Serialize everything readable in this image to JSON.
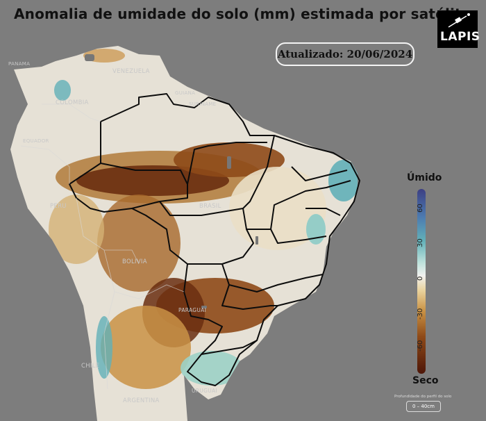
{
  "title": "Anomalia de umidade do solo (mm) estimada por satélite",
  "updated": "Atualizado: 20/06/2024",
  "logo": {
    "text": "LAPIS",
    "icon": "satellite-icon"
  },
  "legend": {
    "wet_label": "Úmido",
    "dry_label": "Seco",
    "ticks": [
      "60",
      "30",
      "0",
      "-30",
      "-60"
    ],
    "depth_caption": "Profundidade do perfil do solo",
    "depth_value": "0 – 40cm",
    "colors": {
      "wet": "#3c3f83",
      "neutral": "#f1f1ef",
      "dry": "#4e1608"
    }
  },
  "countries": [
    "VENEZUELA",
    "COLOMBIA",
    "GUIANA",
    "SURINAME",
    "EQUADOR",
    "PERU",
    "BRASIL",
    "BOLIVIA",
    "PARAGUAI",
    "CHILE",
    "URUGUAI",
    "ARGENTINA",
    "PANAMA"
  ]
}
